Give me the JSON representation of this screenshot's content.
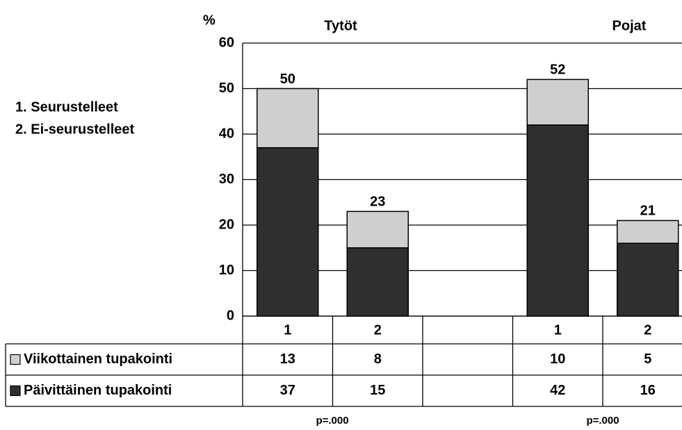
{
  "chart_data": {
    "type": "stacked_bar",
    "y_label": "%",
    "group_labels": [
      "Tytöt",
      "Pojat"
    ],
    "notes": [
      "1.  Seurustelleet",
      "2.  Ei-seurustelleet"
    ],
    "categories": [
      "1",
      "2",
      null,
      "1",
      "2"
    ],
    "series": [
      {
        "name": "Viikottainen tupakointi",
        "color": "#cfcfcf",
        "values": [
          13,
          8,
          null,
          10,
          5
        ]
      },
      {
        "name": "Päivittäinen tupakointi",
        "color": "#2f2f2f",
        "values": [
          37,
          15,
          null,
          42,
          16
        ]
      }
    ],
    "totals": [
      50,
      23,
      null,
      52,
      21
    ],
    "p_values": [
      "p=.000",
      "p=.000"
    ],
    "ylim": [
      0,
      60
    ],
    "yticks": [
      0,
      10,
      20,
      30,
      40,
      50,
      60
    ],
    "grid": true
  }
}
